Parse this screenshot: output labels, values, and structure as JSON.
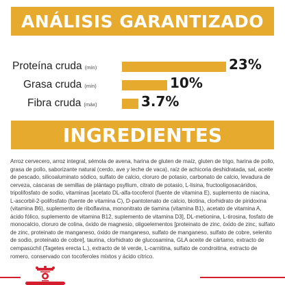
{
  "header": {
    "title": "ANÁLISIS GARANTIZADO"
  },
  "analysis": {
    "items": [
      {
        "name": "Proteína cruda",
        "qualifier": "(mín)",
        "value_label": "23%",
        "value": 23
      },
      {
        "name": "Grasa cruda",
        "qualifier": "(mín)",
        "value_label": "10%",
        "value": 10
      },
      {
        "name": "Fibra cruda",
        "qualifier": "(máx)",
        "value_label": "3.7%",
        "value": 3.7
      }
    ],
    "bar_color": "#e6aa2e"
  },
  "ingredients": {
    "title": "INGREDIENTES",
    "text": "Arroz cervecero, arroz integral, sémola de avena, harina de gluten de maíz, gluten de trigo, harina de pollo, grasa de pollo, saborizante natural (cerdo, ave y leche de vaca), raíz de achicoria deshidratada, sal, aceite de pescado, silicoaluminato sódico, sulfato de calcio, cloruro de potasio, carbonato de calcio, levadura de cerveza, cáscaras de semillas de plántago psyllium, citrato de potasio, L-lisina, fructooligosacáridos, tripolifosfato de sodio, vitaminas [acetato DL-alfa-tocoferol (fuente de vitamina E), suplemento de niacina, L-ascorbil-2-polifosfato (fuente de vitamina C), D-pantotenato de calcio, biotina, clorhidrato de piridoxina (vitamina B6), suplemento de riboflavina, mononitrato de tiamina (vitamina B1), acetato de vitamina A, ácido fólico, suplemento de vitamina B12, suplemento de vitamina D3], DL-metionina, L-tirosina, fosfato de monocalcio, cloruro de colina, óxido de magnesio, oligoelementos [proteinato de zinc, óxido de zinc, sulfato de zinc, proteinato de manganeso, óxido de manganeso, sulfato de manganeso, sulfato de cobre, selenito de sodio, proteinato de cobre], taurina, clorhidrato de glucosamina, GLA aceite de cártamo, extracto de cempasúchil (Tagetes erecta L.), extracto de té verde, L-carnitina, sulfato de condroitina, extracto de romero, conservado con tocoferoles mixtos y ácido cítrico."
  },
  "brand": {
    "logo": "royal-canin-logo",
    "accent_color": "#d51e2d"
  }
}
